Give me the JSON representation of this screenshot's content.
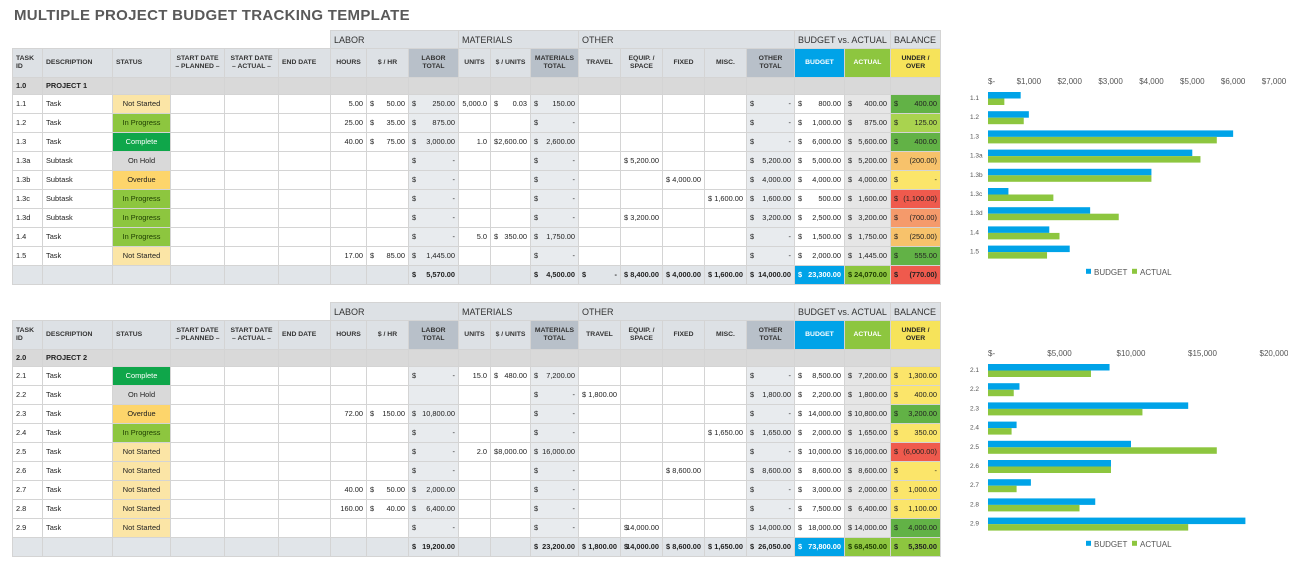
{
  "title": "MULTIPLE PROJECT BUDGET TRACKING TEMPLATE",
  "colors": {
    "budget": "#00a3e8",
    "actual": "#8dc63f",
    "under_over": "#f6e35a",
    "not_started": "#fbe5a6",
    "in_progress": "#8dc63f",
    "complete": "#0fa64a",
    "on_hold": "#d9d9d9",
    "overdue": "#fdd56b"
  },
  "groups": [
    "LABOR",
    "MATERIALS",
    "OTHER",
    "BUDGET vs. ACTUAL",
    "BALANCE"
  ],
  "columns": [
    "TASK ID",
    "DESCRIPTION",
    "STATUS",
    "START DATE – PLANNED –",
    "START DATE – ACTUAL –",
    "END DATE",
    "HOURS",
    "$ / HR",
    "LABOR TOTAL",
    "UNITS",
    "$ / UNITS",
    "MATERIALS TOTAL",
    "TRAVEL",
    "EQUIP. / SPACE",
    "FIXED",
    "MISC.",
    "OTHER TOTAL",
    "BUDGET",
    "ACTUAL",
    "UNDER / OVER"
  ],
  "projects": [
    {
      "id": "1.0",
      "name": "PROJECT 1",
      "rows": [
        {
          "id": "1.1",
          "desc": "Task",
          "status": "Not Started",
          "sc": "s-ns",
          "hours": "5.00",
          "rate": "50.00",
          "labor": "250.00",
          "units": "5,000.0",
          "unit_price": "0.03",
          "materials": "150.00",
          "travel": "",
          "equip": "",
          "fixed": "",
          "misc": "",
          "other": "-",
          "budget": "800.00",
          "actual": "400.00",
          "uo": "400.00",
          "uc": "b-pos"
        },
        {
          "id": "1.2",
          "desc": "Task",
          "status": "In Progress",
          "sc": "s-ip",
          "hours": "25.00",
          "rate": "35.00",
          "labor": "875.00",
          "units": "",
          "unit_price": "",
          "materials": "-",
          "travel": "",
          "equip": "",
          "fixed": "",
          "misc": "",
          "other": "-",
          "budget": "1,000.00",
          "actual": "875.00",
          "uo": "125.00",
          "uc": "b-low"
        },
        {
          "id": "1.3",
          "desc": "Task",
          "status": "Complete",
          "sc": "s-cp",
          "hours": "40.00",
          "rate": "75.00",
          "labor": "3,000.00",
          "units": "1.0",
          "unit_price": "2,600.00",
          "materials": "2,600.00",
          "travel": "",
          "equip": "",
          "fixed": "",
          "misc": "",
          "other": "-",
          "budget": "6,000.00",
          "actual": "5,600.00",
          "uo": "400.00",
          "uc": "b-pos"
        },
        {
          "id": "1.3a",
          "desc": "Subtask",
          "status": "On Hold",
          "sc": "s-oh",
          "sub": true,
          "hours": "",
          "rate": "",
          "labor": "-",
          "units": "",
          "unit_price": "",
          "materials": "-",
          "travel": "",
          "equip": "5,200.00",
          "fixed": "",
          "misc": "",
          "other": "5,200.00",
          "budget": "5,000.00",
          "actual": "5,200.00",
          "uo": "(200.00)",
          "uc": "b-neg1"
        },
        {
          "id": "1.3b",
          "desc": "Subtask",
          "status": "Overdue",
          "sc": "s-od",
          "sub": true,
          "hours": "",
          "rate": "",
          "labor": "-",
          "units": "",
          "unit_price": "",
          "materials": "-",
          "travel": "",
          "equip": "",
          "fixed": "4,000.00",
          "misc": "",
          "other": "4,000.00",
          "budget": "4,000.00",
          "actual": "4,000.00",
          "uo": "-",
          "uc": "b-mid"
        },
        {
          "id": "1.3c",
          "desc": "Subtask",
          "status": "In Progress",
          "sc": "s-ip",
          "sub": true,
          "hours": "",
          "rate": "",
          "labor": "-",
          "units": "",
          "unit_price": "",
          "materials": "-",
          "travel": "",
          "equip": "",
          "fixed": "",
          "misc": "1,600.00",
          "other": "1,600.00",
          "budget": "500.00",
          "actual": "1,600.00",
          "uo": "(1,100.00)",
          "uc": "b-neg3"
        },
        {
          "id": "1.3d",
          "desc": "Subtask",
          "status": "In Progress",
          "sc": "s-ip",
          "sub": true,
          "hours": "",
          "rate": "",
          "labor": "-",
          "units": "",
          "unit_price": "",
          "materials": "-",
          "travel": "",
          "equip": "3,200.00",
          "fixed": "",
          "misc": "",
          "other": "3,200.00",
          "budget": "2,500.00",
          "actual": "3,200.00",
          "uo": "(700.00)",
          "uc": "b-neg2"
        },
        {
          "id": "1.4",
          "desc": "Task",
          "status": "In Progress",
          "sc": "s-ip",
          "hours": "",
          "rate": "",
          "labor": "-",
          "units": "5.0",
          "unit_price": "350.00",
          "materials": "1,750.00",
          "travel": "",
          "equip": "",
          "fixed": "",
          "misc": "",
          "other": "-",
          "budget": "1,500.00",
          "actual": "1,750.00",
          "uo": "(250.00)",
          "uc": "b-neg1"
        },
        {
          "id": "1.5",
          "desc": "Task",
          "status": "Not Started",
          "sc": "s-ns",
          "hours": "17.00",
          "rate": "85.00",
          "labor": "1,445.00",
          "units": "",
          "unit_price": "",
          "materials": "-",
          "travel": "",
          "equip": "",
          "fixed": "",
          "misc": "",
          "other": "-",
          "budget": "2,000.00",
          "actual": "1,445.00",
          "uo": "555.00",
          "uc": "b-pos"
        }
      ],
      "totals": {
        "labor": "5,570.00",
        "materials": "4,500.00",
        "travel": "-",
        "equip": "8,400.00",
        "fixed": "4,000.00",
        "misc": "1,600.00",
        "other": "14,000.00",
        "budget": "23,300.00",
        "actual": "24,070.00",
        "uo": "(770.00)",
        "uc": "fu"
      }
    },
    {
      "id": "2.0",
      "name": "PROJECT 2",
      "rows": [
        {
          "id": "2.1",
          "desc": "Task",
          "status": "Complete",
          "sc": "s-cp",
          "hours": "",
          "rate": "",
          "labor": "-",
          "units": "15.0",
          "unit_price": "480.00",
          "materials": "7,200.00",
          "travel": "",
          "equip": "",
          "fixed": "",
          "misc": "",
          "other": "-",
          "budget": "8,500.00",
          "actual": "7,200.00",
          "uo": "1,300.00",
          "uc": "b-mid"
        },
        {
          "id": "2.2",
          "desc": "Task",
          "status": "On Hold",
          "sc": "s-oh",
          "hours": "",
          "rate": "",
          "labor": "",
          "units": "",
          "unit_price": "",
          "materials": "-",
          "travel": "1,800.00",
          "equip": "",
          "fixed": "",
          "misc": "",
          "other": "1,800.00",
          "budget": "2,200.00",
          "actual": "1,800.00",
          "uo": "400.00",
          "uc": "b-mid"
        },
        {
          "id": "2.3",
          "desc": "Task",
          "status": "Overdue",
          "sc": "s-od",
          "hours": "72.00",
          "rate": "150.00",
          "labor": "10,800.00",
          "units": "",
          "unit_price": "",
          "materials": "-",
          "travel": "",
          "equip": "",
          "fixed": "",
          "misc": "",
          "other": "-",
          "budget": "14,000.00",
          "actual": "10,800.00",
          "uo": "3,200.00",
          "uc": "b-pos"
        },
        {
          "id": "2.4",
          "desc": "Task",
          "status": "In Progress",
          "sc": "s-ip",
          "hours": "",
          "rate": "",
          "labor": "-",
          "units": "",
          "unit_price": "",
          "materials": "-",
          "travel": "",
          "equip": "",
          "fixed": "",
          "misc": "1,650.00",
          "other": "1,650.00",
          "budget": "2,000.00",
          "actual": "1,650.00",
          "uo": "350.00",
          "uc": "b-mid"
        },
        {
          "id": "2.5",
          "desc": "Task",
          "status": "Not Started",
          "sc": "s-ns",
          "hours": "",
          "rate": "",
          "labor": "-",
          "units": "2.0",
          "unit_price": "8,000.00",
          "materials": "16,000.00",
          "travel": "",
          "equip": "",
          "fixed": "",
          "misc": "",
          "other": "-",
          "budget": "10,000.00",
          "actual": "16,000.00",
          "uo": "(6,000.00)",
          "uc": "b-neg3"
        },
        {
          "id": "2.6",
          "desc": "Task",
          "status": "Not Started",
          "sc": "s-ns",
          "hours": "",
          "rate": "",
          "labor": "-",
          "units": "",
          "unit_price": "",
          "materials": "-",
          "travel": "",
          "equip": "",
          "fixed": "8,600.00",
          "misc": "",
          "other": "8,600.00",
          "budget": "8,600.00",
          "actual": "8,600.00",
          "uo": "-",
          "uc": "b-mid"
        },
        {
          "id": "2.7",
          "desc": "Task",
          "status": "Not Started",
          "sc": "s-ns",
          "hours": "40.00",
          "rate": "50.00",
          "labor": "2,000.00",
          "units": "",
          "unit_price": "",
          "materials": "-",
          "travel": "",
          "equip": "",
          "fixed": "",
          "misc": "",
          "other": "-",
          "budget": "3,000.00",
          "actual": "2,000.00",
          "uo": "1,000.00",
          "uc": "b-mid"
        },
        {
          "id": "2.8",
          "desc": "Task",
          "status": "Not Started",
          "sc": "s-ns",
          "hours": "160.00",
          "rate": "40.00",
          "labor": "6,400.00",
          "units": "",
          "unit_price": "",
          "materials": "-",
          "travel": "",
          "equip": "",
          "fixed": "",
          "misc": "",
          "other": "-",
          "budget": "7,500.00",
          "actual": "6,400.00",
          "uo": "1,100.00",
          "uc": "b-mid"
        },
        {
          "id": "2.9",
          "desc": "Task",
          "status": "Not Started",
          "sc": "s-ns",
          "hours": "",
          "rate": "",
          "labor": "-",
          "units": "",
          "unit_price": "",
          "materials": "-",
          "travel": "",
          "equip": "14,000.00",
          "fixed": "",
          "misc": "",
          "other": "14,000.00",
          "budget": "18,000.00",
          "actual": "14,000.00",
          "uo": "4,000.00",
          "uc": "b-pos"
        }
      ],
      "totals": {
        "labor": "19,200.00",
        "materials": "23,200.00",
        "travel": "1,800.00",
        "equip": "14,000.00",
        "fixed": "8,600.00",
        "misc": "1,650.00",
        "other": "26,050.00",
        "budget": "73,800.00",
        "actual": "68,450.00",
        "uo": "5,350.00",
        "uc": "fu2"
      }
    }
  ],
  "chart_data": [
    {
      "type": "bar",
      "orientation": "horizontal",
      "categories": [
        "1.1",
        "1.2",
        "1.3",
        "1.3a",
        "1.3b",
        "1.3c",
        "1.3d",
        "1.4",
        "1.5"
      ],
      "series": [
        {
          "name": "BUDGET",
          "values": [
            800,
            1000,
            6000,
            5000,
            4000,
            500,
            2500,
            1500,
            2000
          ]
        },
        {
          "name": "ACTUAL",
          "values": [
            400,
            875,
            5600,
            5200,
            4000,
            1600,
            3200,
            1750,
            1445
          ]
        }
      ],
      "xlim": [
        0,
        7000
      ],
      "ticks": [
        "$-",
        "$1,000",
        "$2,000",
        "$3,000",
        "$4,000",
        "$5,000",
        "$6,000",
        "$7,000"
      ],
      "legend": "bottom"
    },
    {
      "type": "bar",
      "orientation": "horizontal",
      "categories": [
        "2.1",
        "2.2",
        "2.3",
        "2.4",
        "2.5",
        "2.6",
        "2.7",
        "2.8",
        "2.9"
      ],
      "series": [
        {
          "name": "BUDGET",
          "values": [
            8500,
            2200,
            14000,
            2000,
            10000,
            8600,
            3000,
            7500,
            18000
          ]
        },
        {
          "name": "ACTUAL",
          "values": [
            7200,
            1800,
            10800,
            1650,
            16000,
            8600,
            2000,
            6400,
            14000
          ]
        }
      ],
      "xlim": [
        0,
        20000
      ],
      "ticks": [
        "$-",
        "$5,000",
        "$10,000",
        "$15,000",
        "$20,000"
      ],
      "legend": "bottom"
    }
  ]
}
